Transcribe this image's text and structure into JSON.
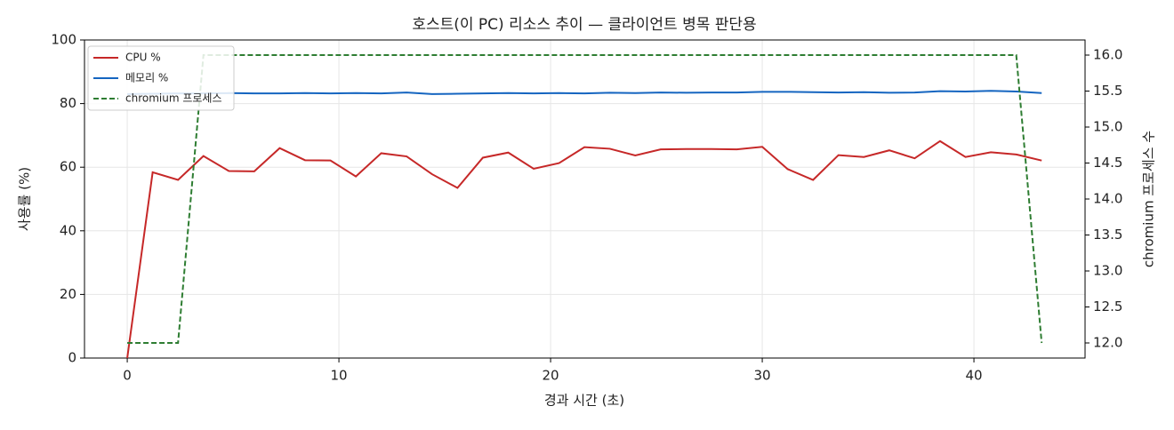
{
  "chart_data": {
    "type": "line",
    "title": "호스트(이 PC) 리소스 추이 — 클라이언트 병목 판단용",
    "xlabel": "경과 시간 (초)",
    "ylabel": "사용률 (%)",
    "y2label": "chromium 프로세스 수",
    "x": [
      0,
      1.2,
      2.4,
      3.6,
      4.8,
      6.0,
      7.2,
      8.4,
      9.6,
      10.8,
      12.0,
      13.2,
      14.4,
      15.6,
      16.8,
      18.0,
      19.2,
      20.4,
      21.6,
      22.8,
      24.0,
      25.2,
      26.4,
      27.6,
      28.8,
      30.0,
      31.2,
      32.4,
      33.6,
      34.8,
      36.0,
      37.2,
      38.4,
      39.6,
      40.8,
      42.0,
      43.2
    ],
    "series": [
      {
        "name": "CPU %",
        "color": "#c62828",
        "dash": false,
        "values": [
          0,
          58.4,
          56,
          63.5,
          58.8,
          58.7,
          66,
          62.2,
          62.1,
          57.1,
          64.4,
          63.4,
          57.8,
          53.5,
          63,
          64.6,
          59.5,
          61.3,
          66.3,
          65.8,
          63.7,
          65.6,
          65.7,
          65.7,
          65.6,
          66.4,
          59.4,
          56,
          63.8,
          63.2,
          65.3,
          62.8,
          68.2,
          63.2,
          64.7,
          64,
          62.1
        ]
      },
      {
        "name": "메모리 %",
        "color": "#1565c0",
        "dash": false,
        "values": [
          83.0,
          83.1,
          83.2,
          83.2,
          83.3,
          83.2,
          83.2,
          83.3,
          83.2,
          83.3,
          83.2,
          83.5,
          83.0,
          83.1,
          83.2,
          83.3,
          83.2,
          83.3,
          83.2,
          83.4,
          83.3,
          83.5,
          83.4,
          83.5,
          83.5,
          83.7,
          83.7,
          83.6,
          83.5,
          83.6,
          83.4,
          83.5,
          83.9,
          83.8,
          84.0,
          83.8,
          83.3
        ]
      },
      {
        "name": "chromium 프로세스",
        "color": "#2e7d32",
        "dash": true,
        "axis": "y2",
        "values": [
          12,
          12,
          12,
          16,
          16,
          16,
          16,
          16,
          16,
          16,
          16,
          16,
          16,
          16,
          16,
          16,
          16,
          16,
          16,
          16,
          16,
          16,
          16,
          16,
          16,
          16,
          16,
          16,
          16,
          16,
          16,
          16,
          16,
          16,
          16,
          16,
          12
        ]
      }
    ],
    "xlim": [
      -2.02,
      45.25
    ],
    "xticks": [
      0,
      10,
      20,
      30,
      40
    ],
    "ylim": [
      0,
      100
    ],
    "yticks": [
      0,
      20,
      40,
      60,
      80,
      100
    ],
    "y2lim": [
      11.79,
      16.21
    ],
    "y2ticks": [
      {
        "value": 12,
        "label": "12.0"
      },
      {
        "value": 12.5,
        "label": "12.5"
      },
      {
        "value": 13,
        "label": "13.0"
      },
      {
        "value": 13.5,
        "label": "13.5"
      },
      {
        "value": 14,
        "label": "14.0"
      },
      {
        "value": 14.5,
        "label": "14.5"
      },
      {
        "value": 15,
        "label": "15.0"
      },
      {
        "value": 15.5,
        "label": "15.5"
      },
      {
        "value": 16,
        "label": "16.0"
      }
    ],
    "grid": true,
    "legend": "upper left"
  }
}
